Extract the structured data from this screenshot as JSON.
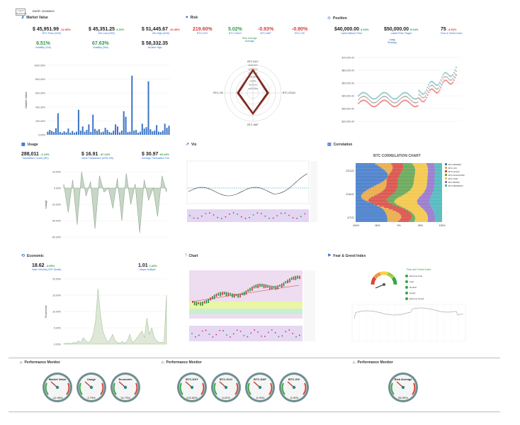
{
  "header": {
    "logo": "Crypto Dashboard",
    "date_label": "DATE:",
    "date": "2/24/2021"
  },
  "colors": {
    "bar": "#3a74c6",
    "green": "#2e9a44",
    "red": "#d63b3b",
    "area": "#b9ccb8"
  },
  "market": {
    "title": "Market Value",
    "vals": [
      {
        "v": "$ 45,951.99",
        "p": "-12.08%",
        "pc": "red",
        "s": "BTC Price (USD)"
      },
      {
        "v": "$ 45,351.25",
        "p": "4.16%",
        "pc": "green",
        "s": "24h Low (USD)"
      },
      {
        "v": "$ 51,445.67",
        "p": "-10.48%",
        "pc": "red",
        "s": "24h High (USD)"
      }
    ],
    "row2": [
      {
        "v": "6.51%",
        "s": "Volatility (24h)"
      },
      {
        "v": "67.63%",
        "s": "Volatility (30d)"
      },
      {
        "v": "$ 58,332.35",
        "s": "All-time High"
      }
    ]
  },
  "risk": {
    "title": "Risk",
    "vals": [
      {
        "v": "219.60%",
        "c": "red",
        "s": "BTC-DXY"
      },
      {
        "v": "5.02%",
        "c": "green",
        "s": "BTC-GOLD"
      },
      {
        "v": "-0.93%",
        "c": "red",
        "s": "BTC-S&P"
      },
      {
        "v": "-0.90%",
        "c": "red",
        "s": "BTC-VIX"
      }
    ],
    "avg_label": "Risk Average",
    "avg_sub": "Average",
    "axes": [
      "BTC-DXY",
      "BTC-GOLD",
      "BTC-S&P",
      "BTC-VIX"
    ],
    "rings": [
      "2000.00%",
      "1500.00%",
      "1000.00%",
      "500.00%",
      "0.00%",
      "-500.00%",
      "-1000.00%"
    ]
  },
  "position": {
    "title": "Position",
    "vals": [
      {
        "v": "$40,000.00",
        "p": "4.43%",
        "pc": "green",
        "s": "Latest Bitcoin Price"
      },
      {
        "v": "$50,000.00",
        "p": "5.04%",
        "pc": "green",
        "s": "Latest Price Target"
      },
      {
        "v": "75",
        "p": "-4.92%",
        "pc": "red",
        "s": "Fear & Greed Index"
      }
    ],
    "strategy": "Long",
    "strategy_sub": "Strategy",
    "yticks": [
      "$70,000.00",
      "$60,000.00",
      "$50,000.00",
      "$40,000.00",
      "$30,000.00",
      "$20,000.00"
    ]
  },
  "usage": {
    "title": "Usage",
    "vals": [
      {
        "v": "288,011",
        "p": "-1.13%",
        "pc": "green",
        "s": "Transaction Count (24h)"
      },
      {
        "v": "$ 16.91",
        "p": "-47.14%",
        "pc": "green",
        "s": "Value Transaction (USD 24h)"
      },
      {
        "v": "$ 30.97",
        "p": "46.14%",
        "pc": "green",
        "s": "Average Transaction Fee"
      }
    ],
    "ylabel": "Usage",
    "yticks": [
      "20.00%",
      "0.00%",
      "-20.00%",
      "-40.00%",
      "-60.00%"
    ]
  },
  "vix": {
    "title": "Vix"
  },
  "correlation": {
    "title": "Correlation",
    "chart_title": "BTC CORRELATION CHART",
    "legend": [
      "BTC-BSP500",
      "BTC-VIX",
      "BTC-GOLD",
      "BTC-GOLD/USD",
      "BTC-USD",
      "BTC-BOND",
      "BTC-BOND/DX"
    ],
    "ylabels": [
      "2/21/21",
      "2/16/21",
      "2/7/21"
    ],
    "xlabels": [
      "-100%",
      "-50%",
      "0%",
      "50%",
      "100%"
    ]
  },
  "economic": {
    "title": "Economic",
    "vals": [
      {
        "v": "18.62",
        "p": "-4.93%",
        "pc": "green",
        "s": "Hash Velocity (S2F Model)"
      },
      {
        "v": "1.01",
        "p": "1.04%",
        "pc": "green",
        "s": "Mayer Multiple"
      }
    ],
    "ylabel": "Economic",
    "yticks": [
      "20.00%",
      "15.00%",
      "10.00%",
      "5.00%",
      "0.00%"
    ]
  },
  "chart": {
    "title": "Chart"
  },
  "feargreed": {
    "title": "Fear & Greed Index",
    "legend_title": "Fear and Greed Index",
    "items": [
      "Extreme Fear",
      "Fear",
      "Neutral",
      "Greed",
      "Extreme Greed"
    ]
  },
  "monitors": [
    {
      "title": "Performance Monitor",
      "gauges": [
        {
          "n": "Market Value",
          "v": "-12.08%"
        },
        {
          "n": "Usage",
          "v": "2.79%"
        },
        {
          "n": "Economic",
          "v": "14.73%"
        }
      ]
    },
    {
      "title": "Performance Monitor",
      "gauges": [
        {
          "n": "BTC-DXY",
          "v": "219.60%"
        },
        {
          "n": "BTC-GLD",
          "v": "5.02%"
        },
        {
          "n": "BTC-S&P",
          "v": "-0.93%"
        },
        {
          "n": "BTC-VIX",
          "v": "-0.90%"
        }
      ]
    },
    {
      "title": "Performance Monitor",
      "gauges": [
        {
          "n": "Risk Average",
          "v": "55.59%"
        }
      ]
    }
  ],
  "chart_data": [
    {
      "type": "bar",
      "title": "",
      "ylabel": "Market Value",
      "ylim": [
        0,
        1000
      ],
      "yticks": [
        "1000.00%",
        "800.00%",
        "600.00%",
        "400.00%",
        "200.00%",
        "0.00%"
      ],
      "values": [
        45,
        70,
        55,
        40,
        95,
        310,
        40,
        30,
        50,
        35,
        90,
        30,
        55,
        30,
        45,
        360,
        60,
        120,
        45,
        70,
        150,
        40,
        290,
        85,
        60,
        80,
        35,
        45,
        100,
        70,
        40,
        30,
        60,
        150,
        120,
        35,
        60,
        340,
        260,
        40,
        45,
        850,
        60,
        70,
        30,
        45,
        160,
        90,
        110,
        770,
        80,
        50,
        60,
        140,
        45,
        40,
        60,
        160,
        100,
        130
      ]
    },
    {
      "type": "area",
      "title": "",
      "ylabel": "Usage",
      "ylim": [
        -60,
        20
      ],
      "values": [
        5,
        -30,
        10,
        -45,
        20,
        -10,
        8,
        -50,
        15,
        -5,
        0,
        -25,
        12,
        -40,
        18,
        -20,
        5,
        -55,
        10,
        -15,
        0,
        -35,
        15,
        -5
      ]
    },
    {
      "type": "area",
      "title": "",
      "ylabel": "Economic",
      "ylim": [
        0,
        20
      ],
      "values": [
        0.1,
        0.2,
        0.3,
        0.1,
        0.5,
        0.3,
        1,
        0.5,
        2,
        1,
        0.5,
        1,
        3,
        7,
        17,
        9,
        4,
        2,
        0.5,
        1.5,
        3,
        1,
        0.5,
        0.3,
        0.8,
        0.2,
        1,
        3,
        0.5,
        1,
        2,
        3,
        4,
        2,
        8,
        3,
        5,
        2,
        1,
        0.5,
        0.5,
        0.6,
        15
      ]
    },
    {
      "type": "line",
      "title": "",
      "values": [
        30,
        32,
        31,
        35,
        34,
        36,
        35,
        33,
        34,
        36,
        37,
        38,
        36,
        37,
        39,
        38,
        37,
        36,
        38,
        40,
        39,
        42,
        41,
        43
      ]
    }
  ]
}
